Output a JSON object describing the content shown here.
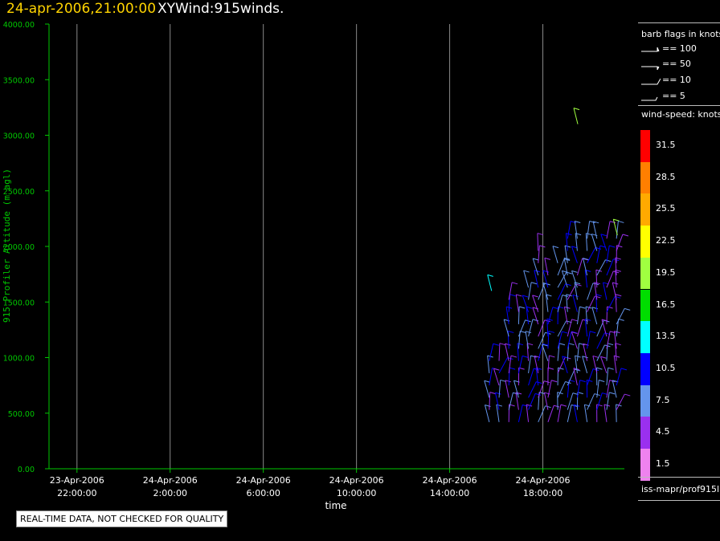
{
  "title_date": "24-apr-2006,21:00:00",
  "title_main": "XYWind:915winds.",
  "chart_data": {
    "type": "scatter",
    "subtype": "wind-barb time-height profile",
    "xlabel": "time",
    "ylabel": "915 Profiler Altitude (m agl)",
    "ylim": [
      0,
      4000
    ],
    "xlim_hours": [
      -1.2,
      23.5
    ],
    "y_ticks": [
      "0.00",
      "500.00",
      "1000.00",
      "1500.00",
      "2000.00",
      "2500.00",
      "3000.00",
      "3500.00",
      "4000.00"
    ],
    "x_ticks": [
      {
        "hour": 0,
        "date": "23-Apr-2006",
        "time": "22:00:00"
      },
      {
        "hour": 4,
        "date": "24-Apr-2006",
        "time": "2:00:00"
      },
      {
        "hour": 8,
        "date": "24-Apr-2006",
        "time": "6:00:00"
      },
      {
        "hour": 12,
        "date": "24-Apr-2006",
        "time": "10:00:00"
      },
      {
        "hour": 16,
        "date": "24-Apr-2006",
        "time": "14:00:00"
      },
      {
        "hour": 20,
        "date": "24-Apr-2006",
        "time": "18:00:00"
      }
    ],
    "grid": "vertical lines at x ticks",
    "barbs_note": "data present only for about the last 5.5 hours"
  },
  "legend": {
    "barb_title": "barb flags in knots",
    "barb_flags": [
      "== 100",
      "== 50",
      "== 10",
      "== 5"
    ],
    "speed_title": "wind-speed: knots",
    "colorbar": [
      {
        "label": "31.5",
        "color": "#ff0000"
      },
      {
        "label": "28.5",
        "color": "#ff7f00"
      },
      {
        "label": "25.5",
        "color": "#ffaa00"
      },
      {
        "label": "22.5",
        "color": "#ffff00"
      },
      {
        "label": "19.5",
        "color": "#a0ff40"
      },
      {
        "label": "16.5",
        "color": "#00dd00"
      },
      {
        "label": "13.5",
        "color": "#00ffff"
      },
      {
        "label": "10.5",
        "color": "#0000ff"
      },
      {
        "label": "7.5",
        "color": "#6495ed"
      },
      {
        "label": "4.5",
        "color": "#9a30ee"
      },
      {
        "label": "1.5",
        "color": "#ee82ee"
      }
    ],
    "source": "iss-mapr/prof915l"
  },
  "disclaimer": "REAL-TIME DATA, NOT CHECKED FOR QUALITY",
  "colors": {
    "axis": "#00c800",
    "grid": "#8a8a8a",
    "title_date": "#ffd400"
  }
}
